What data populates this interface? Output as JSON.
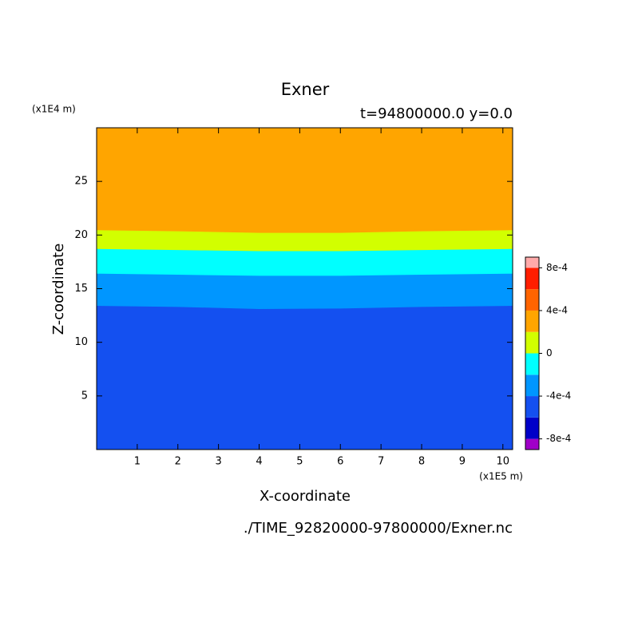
{
  "chart_data": {
    "type": "contour",
    "title": "Exner",
    "subtitle": "t=94800000.0 y=0.0",
    "x_label": "X-coordinate",
    "y_label": "Z-coordinate",
    "x_unit": "(x1E5 m)",
    "y_unit": "(x1E4 m)",
    "footer": "./TIME_92820000-97800000/Exner.nc",
    "x": [
      0,
      2,
      4,
      6,
      8,
      10.24
    ],
    "series": [
      {
        "color": "#1450f0",
        "values": [
          13.4,
          13.3,
          13.1,
          13.15,
          13.3,
          13.4
        ]
      },
      {
        "color": "#0096ff",
        "values": [
          16.4,
          16.3,
          16.2,
          16.2,
          16.3,
          16.4
        ]
      },
      {
        "color": "#00ffff",
        "values": [
          18.7,
          18.6,
          18.5,
          18.5,
          18.6,
          18.7
        ]
      },
      {
        "color": "#d2ff00",
        "values": [
          20.45,
          20.35,
          20.2,
          20.2,
          20.35,
          20.45
        ]
      },
      {
        "color": "#ffa500"
      }
    ],
    "xlim": [
      0,
      10.24
    ],
    "ylim": [
      0,
      30
    ],
    "xticks": [
      1,
      2,
      3,
      4,
      5,
      6,
      7,
      8,
      9,
      10
    ],
    "yticks": [
      5,
      10,
      15,
      20,
      25
    ],
    "colorbar": {
      "levels": [
        -0.0008,
        -0.0006,
        -0.0004,
        -0.0002,
        0,
        0.0002,
        0.0004,
        0.0006,
        0.0008
      ],
      "colors": [
        "#a000c8",
        "#0000c8",
        "#1450f0",
        "#0096ff",
        "#00ffff",
        "#d2ff00",
        "#ffa500",
        "#ff6400",
        "#ff1e00",
        "#ffaaaa"
      ],
      "ticks": [
        {
          "value": 0.0008,
          "label": "8e-4"
        },
        {
          "value": 0.0004,
          "label": "4e-4"
        },
        0,
        {
          "value": -0.0004,
          "label": "-4e-4"
        },
        {
          "value": -0.0008,
          "label": "-8e-4"
        }
      ]
    }
  }
}
